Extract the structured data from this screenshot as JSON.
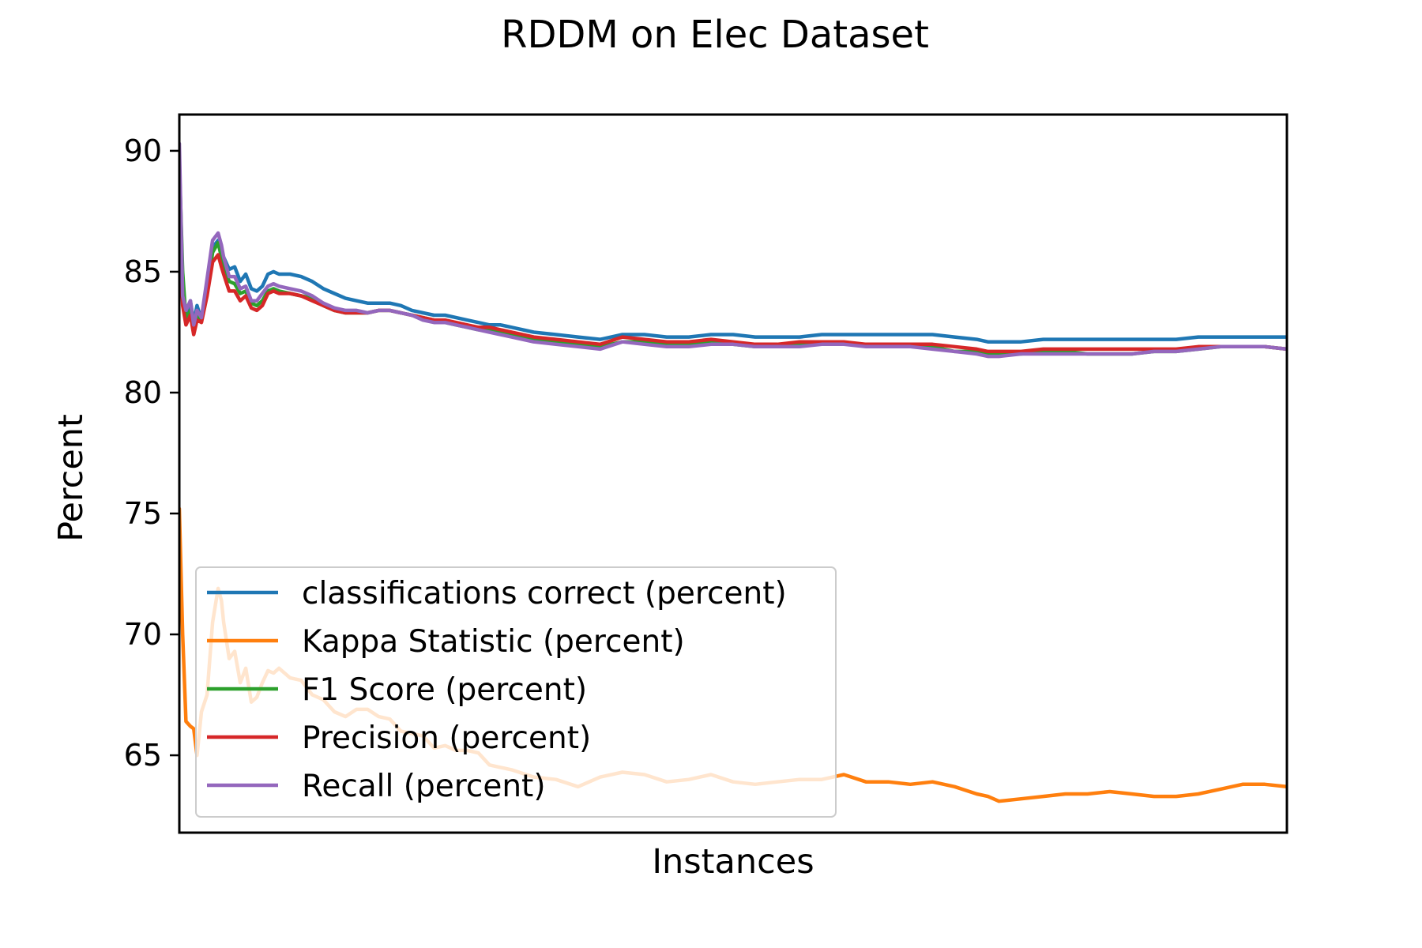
{
  "chart_data": {
    "type": "line",
    "title": "RDDM on Elec Dataset",
    "xlabel": "Instances",
    "ylabel": "Percent",
    "xlim": [
      0,
      100
    ],
    "ylim": [
      61.8,
      91.5
    ],
    "x_ticks_shown": false,
    "y_ticks": [
      {
        "value": 65,
        "label": "65"
      },
      {
        "value": 70,
        "label": "70"
      },
      {
        "value": 75,
        "label": "75"
      },
      {
        "value": 80,
        "label": "80"
      },
      {
        "value": 85,
        "label": "85"
      },
      {
        "value": 90,
        "label": "90"
      }
    ],
    "legend_position": "lower-left",
    "x": [
      0,
      0.3,
      0.6,
      1.0,
      1.3,
      1.6,
      2,
      2.5,
      3,
      3.5,
      3.8,
      4,
      4.5,
      5,
      5.5,
      6,
      6.5,
      7,
      7.5,
      8,
      8.5,
      9,
      10,
      11,
      12,
      13,
      14,
      15,
      16,
      17,
      18,
      19,
      20,
      21,
      22,
      23,
      24,
      25,
      26,
      27,
      28,
      29,
      30,
      32,
      34,
      36,
      38,
      40,
      42,
      44,
      46,
      48,
      50,
      52,
      54,
      56,
      58,
      60,
      62,
      64,
      66,
      68,
      70,
      72,
      73,
      74,
      76,
      78,
      80,
      82,
      84,
      86,
      88,
      90,
      92,
      94,
      96,
      98,
      100
    ],
    "series": [
      {
        "name": "classifications correct (percent)",
        "color": "#1f77b4",
        "values": [
          88.0,
          84.5,
          83.2,
          83.8,
          82.9,
          83.6,
          83.0,
          84.6,
          86.0,
          86.3,
          85.8,
          85.6,
          85.1,
          85.2,
          84.6,
          84.9,
          84.3,
          84.2,
          84.4,
          84.9,
          85.0,
          84.9,
          84.9,
          84.8,
          84.6,
          84.3,
          84.1,
          83.9,
          83.8,
          83.7,
          83.7,
          83.7,
          83.6,
          83.4,
          83.3,
          83.2,
          83.2,
          83.1,
          83.0,
          82.9,
          82.8,
          82.8,
          82.7,
          82.5,
          82.4,
          82.3,
          82.2,
          82.4,
          82.4,
          82.3,
          82.3,
          82.4,
          82.4,
          82.3,
          82.3,
          82.3,
          82.4,
          82.4,
          82.4,
          82.4,
          82.4,
          82.4,
          82.3,
          82.2,
          82.1,
          82.1,
          82.1,
          82.2,
          82.2,
          82.2,
          82.2,
          82.2,
          82.2,
          82.2,
          82.3,
          82.3,
          82.3,
          82.3,
          82.3
        ]
      },
      {
        "name": "Kappa Statistic (percent)",
        "color": "#ff7f0e",
        "values": [
          75.2,
          70.0,
          66.4,
          66.2,
          66.1,
          65.0,
          66.8,
          67.5,
          70.5,
          71.9,
          71.4,
          70.5,
          69.0,
          69.3,
          68.0,
          68.6,
          67.2,
          67.4,
          68.0,
          68.5,
          68.4,
          68.6,
          68.2,
          68.1,
          67.5,
          67.3,
          66.8,
          66.6,
          66.9,
          66.9,
          66.6,
          66.5,
          66.0,
          65.9,
          65.8,
          65.3,
          65.4,
          65.2,
          65.2,
          65.1,
          64.6,
          64.5,
          64.4,
          64.1,
          64.0,
          63.7,
          64.1,
          64.3,
          64.2,
          63.9,
          64.0,
          64.2,
          63.9,
          63.8,
          63.9,
          64.0,
          64.0,
          64.2,
          63.9,
          63.9,
          63.8,
          63.9,
          63.7,
          63.4,
          63.3,
          63.1,
          63.2,
          63.3,
          63.4,
          63.4,
          63.5,
          63.4,
          63.3,
          63.3,
          63.4,
          63.6,
          63.8,
          63.8,
          63.7
        ]
      },
      {
        "name": "F1 Score (percent)",
        "color": "#2ca02c",
        "values": [
          89.5,
          85.0,
          83.0,
          83.4,
          82.7,
          83.2,
          83.0,
          84.2,
          85.8,
          86.2,
          85.6,
          85.2,
          84.6,
          84.5,
          84.1,
          84.2,
          83.7,
          83.6,
          83.8,
          84.2,
          84.3,
          84.2,
          84.1,
          84.0,
          83.9,
          83.6,
          83.4,
          83.3,
          83.3,
          83.3,
          83.4,
          83.4,
          83.3,
          83.2,
          83.1,
          83.0,
          82.9,
          82.8,
          82.7,
          82.6,
          82.6,
          82.5,
          82.4,
          82.2,
          82.1,
          82.0,
          81.9,
          82.1,
          82.1,
          82.0,
          82.0,
          82.1,
          82.0,
          81.9,
          81.9,
          82.0,
          82.0,
          82.0,
          82.0,
          81.9,
          81.9,
          81.9,
          81.7,
          81.7,
          81.6,
          81.6,
          81.6,
          81.7,
          81.7,
          81.6,
          81.6,
          81.6,
          81.7,
          81.7,
          81.8,
          81.9,
          81.9,
          81.9,
          81.8
        ]
      },
      {
        "name": "Precision (percent)",
        "color": "#d62728",
        "values": [
          87.0,
          83.6,
          82.8,
          83.2,
          82.4,
          83.0,
          82.9,
          84.0,
          85.4,
          85.7,
          85.2,
          84.9,
          84.2,
          84.2,
          83.8,
          84.0,
          83.5,
          83.4,
          83.6,
          84.1,
          84.2,
          84.1,
          84.1,
          84.0,
          83.8,
          83.6,
          83.4,
          83.3,
          83.3,
          83.3,
          83.4,
          83.4,
          83.3,
          83.2,
          83.1,
          83.0,
          83.0,
          82.9,
          82.8,
          82.7,
          82.7,
          82.6,
          82.5,
          82.3,
          82.2,
          82.1,
          82.0,
          82.3,
          82.2,
          82.1,
          82.1,
          82.2,
          82.1,
          82.0,
          82.0,
          82.1,
          82.1,
          82.1,
          82.0,
          82.0,
          82.0,
          82.0,
          81.9,
          81.8,
          81.7,
          81.7,
          81.7,
          81.8,
          81.8,
          81.8,
          81.8,
          81.8,
          81.8,
          81.8,
          81.9,
          81.9,
          81.9,
          81.9,
          81.8
        ]
      },
      {
        "name": "Recall (percent)",
        "color": "#9467bd",
        "values": [
          90.3,
          84.0,
          83.4,
          83.8,
          82.8,
          83.4,
          83.1,
          84.7,
          86.3,
          86.6,
          86.1,
          85.6,
          84.8,
          84.8,
          84.3,
          84.4,
          83.8,
          83.8,
          84.1,
          84.4,
          84.5,
          84.4,
          84.3,
          84.2,
          84.0,
          83.7,
          83.5,
          83.4,
          83.4,
          83.3,
          83.4,
          83.4,
          83.3,
          83.2,
          83.0,
          82.9,
          82.9,
          82.8,
          82.7,
          82.6,
          82.5,
          82.4,
          82.3,
          82.1,
          82.0,
          81.9,
          81.8,
          82.1,
          82.0,
          81.9,
          81.9,
          82.0,
          82.0,
          81.9,
          81.9,
          81.9,
          82.0,
          82.0,
          81.9,
          81.9,
          81.9,
          81.8,
          81.7,
          81.6,
          81.5,
          81.5,
          81.6,
          81.6,
          81.6,
          81.6,
          81.6,
          81.6,
          81.7,
          81.7,
          81.8,
          81.9,
          81.9,
          81.9,
          81.8
        ]
      }
    ]
  }
}
